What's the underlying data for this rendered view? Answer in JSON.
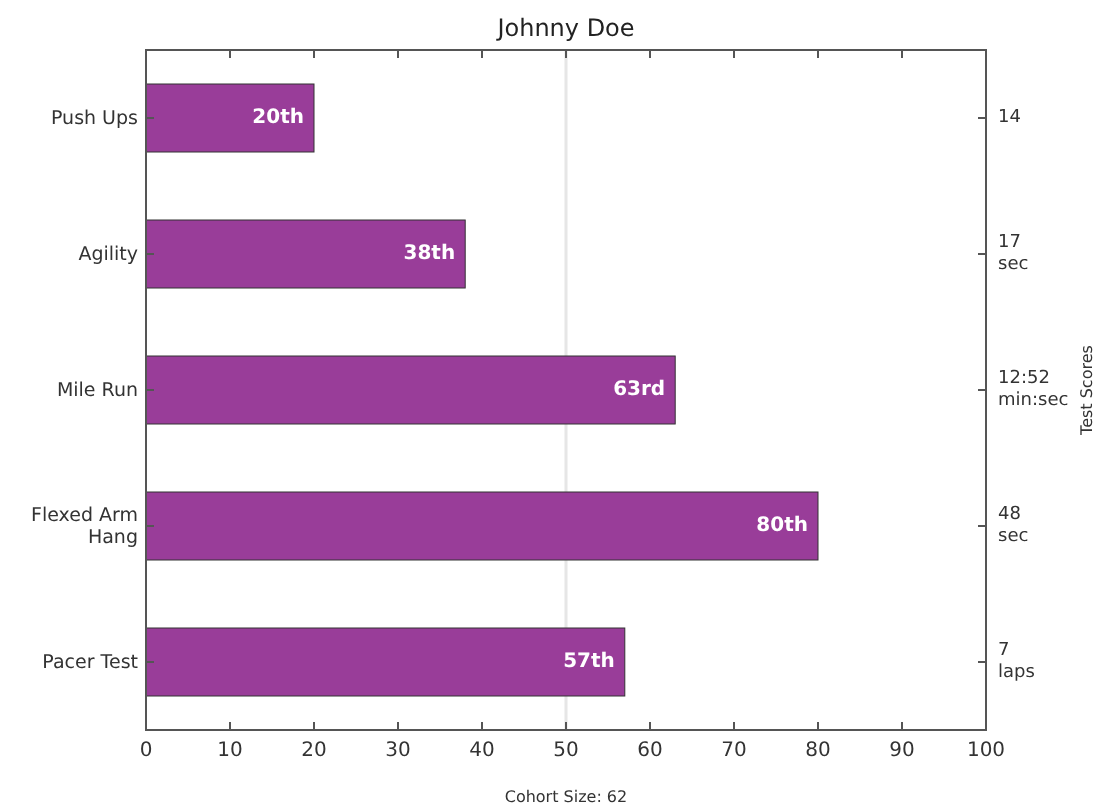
{
  "chart_data": {
    "type": "bar",
    "orientation": "horizontal",
    "title": "Johnny Doe",
    "xlabel": "Cohort Size: 62",
    "y2label": "Test Scores",
    "categories": [
      "Push Ups",
      "Agility",
      "Mile Run",
      "Flexed Arm\nHang",
      "Pacer Test"
    ],
    "y2_categories": [
      "14",
      "17\nsec",
      "12:52\nmin:sec",
      "48\nsec",
      "7\nlaps"
    ],
    "values": [
      20,
      38,
      63,
      80,
      57
    ],
    "color": "#993d99",
    "value_labels": [
      "20th",
      "38th",
      "63rd",
      "80th",
      "57th"
    ],
    "xlim": [
      0,
      100
    ],
    "xticks": [
      0,
      10,
      20,
      30,
      40,
      50,
      60,
      70,
      80,
      90,
      100
    ],
    "ref_lines": [
      {
        "axis": "x",
        "value": 50,
        "color": "#e6e6e6"
      }
    ],
    "grid": false
  }
}
